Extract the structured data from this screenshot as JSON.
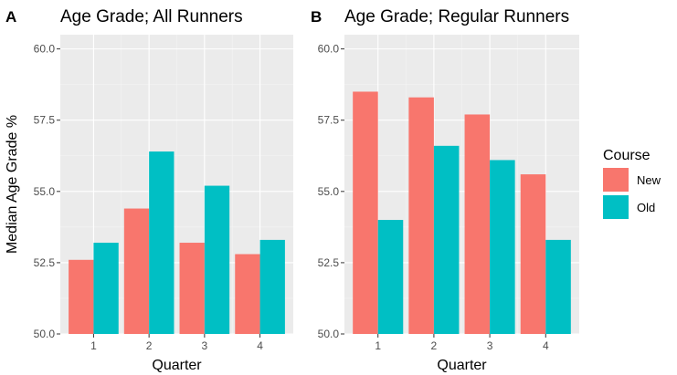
{
  "colors": {
    "New": "#F8766D",
    "Old": "#00BFC4",
    "panel_bg": "#EBEBEB",
    "grid_major": "#FFFFFF",
    "grid_minor": "#F4F4F4"
  },
  "ylabel": "Median Age Grade %",
  "legend": {
    "title": "Course",
    "items": [
      "New",
      "Old"
    ],
    "position": "right"
  },
  "chart_data": [
    {
      "type": "bar",
      "panel": "A",
      "title": "Age Grade; All Runners",
      "xlabel": "Quarter",
      "categories": [
        "1",
        "2",
        "3",
        "4"
      ],
      "series": [
        {
          "name": "New",
          "values": [
            52.6,
            54.4,
            53.2,
            52.8
          ]
        },
        {
          "name": "Old",
          "values": [
            53.2,
            56.4,
            55.2,
            53.3
          ]
        }
      ],
      "ylim": [
        50,
        60.5
      ],
      "yticks": [
        "50.0",
        "52.5",
        "55.0",
        "57.5",
        "60.0"
      ],
      "grid": true
    },
    {
      "type": "bar",
      "panel": "B",
      "title": "Age Grade; Regular Runners",
      "xlabel": "Quarter",
      "categories": [
        "1",
        "2",
        "3",
        "4"
      ],
      "series": [
        {
          "name": "New",
          "values": [
            58.5,
            58.3,
            57.7,
            55.6
          ]
        },
        {
          "name": "Old",
          "values": [
            54.0,
            56.6,
            56.1,
            53.3
          ]
        }
      ],
      "ylim": [
        50,
        60.5
      ],
      "yticks": [
        "50.0",
        "52.5",
        "55.0",
        "57.5",
        "60.0"
      ],
      "grid": true
    }
  ]
}
